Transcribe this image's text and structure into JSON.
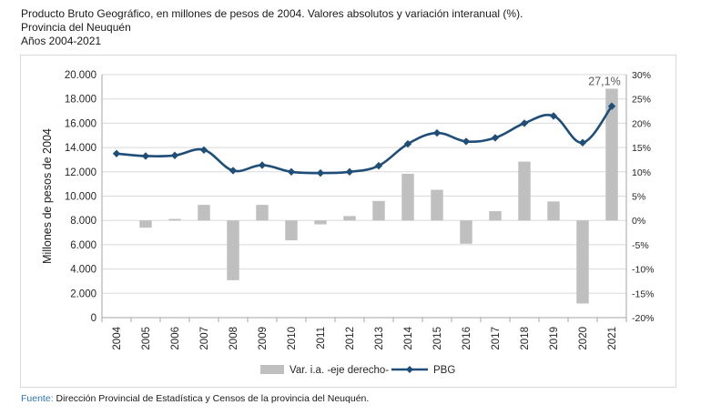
{
  "header": {
    "title": "Producto Bruto Geográfico, en millones de pesos de 2004. Valores absolutos y variación interanual (%).",
    "subtitle1": "Provincia del Neuquén",
    "subtitle2": "Años 2004-2021"
  },
  "footer": {
    "label": "Fuente:",
    "text": "Dirección Provincial de Estadística y Censos de la provincia del Neuquén."
  },
  "chart_data": {
    "type": "bar",
    "title": "Producto Bruto Geográfico, en millones de pesos de 2004. Valores absolutos y variación interanual (%).",
    "ylabel": "Millones de pesos de 2004",
    "categories": [
      "2004",
      "2005",
      "2006",
      "2007",
      "2008",
      "2009",
      "2010",
      "2011",
      "2012",
      "2013",
      "2014",
      "2015",
      "2016",
      "2017",
      "2018",
      "2019",
      "2020",
      "2021"
    ],
    "y_left": {
      "ylim": [
        0,
        20000
      ],
      "ticks": [
        0,
        2000,
        4000,
        6000,
        8000,
        10000,
        12000,
        14000,
        16000,
        18000,
        20000
      ],
      "tick_labels": [
        "0",
        "2.000",
        "4.000",
        "6.000",
        "8.000",
        "10.000",
        "12.000",
        "14.000",
        "16.000",
        "18.000",
        "20.000"
      ]
    },
    "y_right": {
      "ylim": [
        -20,
        30
      ],
      "ticks": [
        -20,
        -15,
        -10,
        -5,
        0,
        5,
        10,
        15,
        20,
        25,
        30
      ],
      "tick_labels": [
        "-20%",
        "-15%",
        "-10%",
        "-5%",
        "0%",
        "5%",
        "10%",
        "15%",
        "20%",
        "25%",
        "30%"
      ]
    },
    "series": [
      {
        "name": "Var. i.a. -eje derecho-",
        "kind": "bar",
        "axis": "right",
        "color": "#bfbfbf",
        "values": [
          null,
          -1.5,
          0.3,
          3.2,
          -12.3,
          3.2,
          -4.1,
          -0.8,
          0.9,
          4.0,
          9.6,
          6.3,
          -4.8,
          1.9,
          12.1,
          3.9,
          -17.1,
          27.1
        ]
      },
      {
        "name": "PBG",
        "kind": "line",
        "axis": "left",
        "color": "#1f4e79",
        "values": [
          13500,
          13300,
          13350,
          13800,
          12100,
          12550,
          12000,
          11900,
          12000,
          12500,
          14300,
          15200,
          14500,
          14800,
          16000,
          16600,
          14400,
          17400
        ]
      }
    ],
    "annotations": [
      {
        "category": "2021",
        "text": "27,1%"
      }
    ],
    "legend_position": "bottom",
    "grid": true
  }
}
